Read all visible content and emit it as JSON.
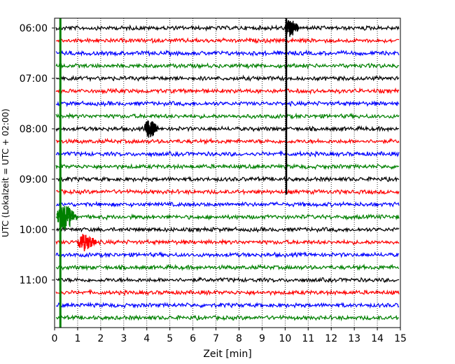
{
  "chart_data": {
    "type": "line",
    "title": "",
    "xlabel": "Zeit  [min]",
    "ylabel": "UTC (Lokalzeit = UTC + 02:00)",
    "xlim": [
      0,
      15
    ],
    "x_ticks": [
      "0",
      "1",
      "2",
      "3",
      "4",
      "5",
      "6",
      "7",
      "8",
      "9",
      "10",
      "11",
      "12",
      "13",
      "14",
      "15"
    ],
    "y_ticks": [
      "06:00",
      "07:00",
      "08:00",
      "09:00",
      "10:00",
      "11:00"
    ],
    "grid": "vertical dotted",
    "trace_colors": [
      "#000000",
      "#ff0000",
      "#0000ff",
      "#008000"
    ],
    "trace_count": 24,
    "events": [
      {
        "row": 0,
        "start_min": 10.0,
        "end_min": 10.6,
        "color": "#000000",
        "note": ""
      },
      {
        "row": 8,
        "start_min": 3.9,
        "end_min": 4.5,
        "color": "#000000",
        "note": ""
      },
      {
        "row": 15,
        "start_min": 0.1,
        "end_min": 1.0,
        "color": "#008000",
        "note": ""
      },
      {
        "row": 17,
        "start_min": 1.0,
        "end_min": 1.8,
        "color": "#ff0000",
        "note": ""
      }
    ],
    "spikes": [
      {
        "x_min": 10.05,
        "from_row": 0,
        "to_row": 13,
        "color": "#000000"
      },
      {
        "x_min": 0.25,
        "from_row": 0,
        "to_row": 23,
        "color": "#008000"
      }
    ]
  }
}
